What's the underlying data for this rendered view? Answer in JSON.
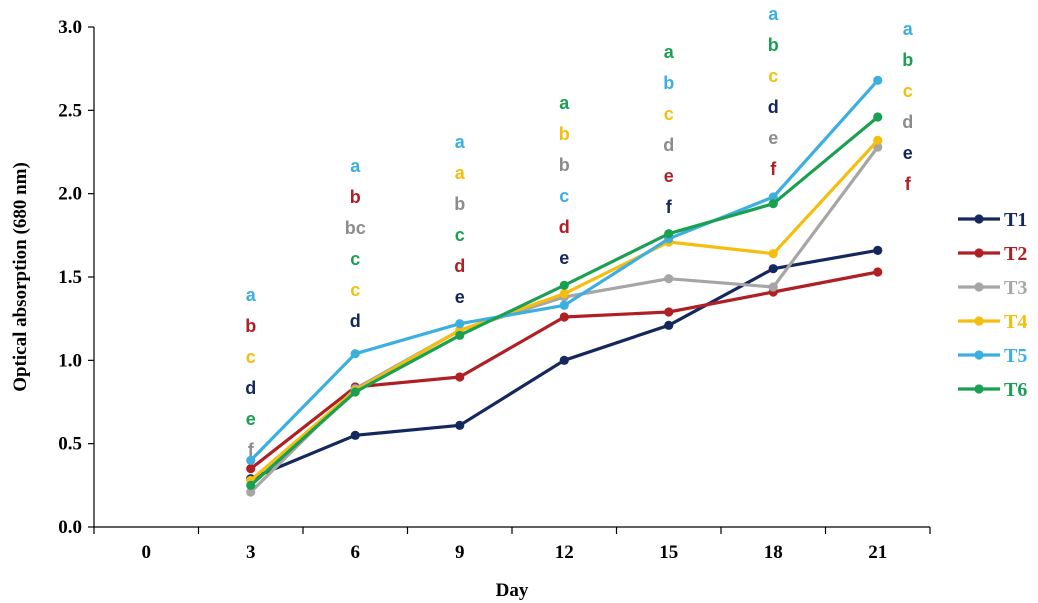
{
  "chart_data": {
    "type": "line",
    "title": "",
    "xlabel": "Day",
    "ylabel": "Optical absorption (680 nm)",
    "x_ticks": [
      0,
      3,
      6,
      9,
      12,
      15,
      18,
      21
    ],
    "x_tick_labels": [
      "0",
      "3",
      "6",
      "9",
      "12",
      "15",
      "18",
      "21"
    ],
    "y_ticks": [
      0.0,
      0.5,
      1.0,
      1.5,
      2.0,
      2.5,
      3.0
    ],
    "y_tick_labels": [
      "0.0",
      "0.5",
      "1.0",
      "1.5",
      "2.0",
      "2.5",
      "3.0"
    ],
    "xlim": [
      -1.5,
      22.5
    ],
    "ylim": [
      0,
      3.0
    ],
    "grid": false,
    "legend_position": "right",
    "x": [
      3,
      6,
      9,
      12,
      15,
      18,
      21
    ],
    "series": [
      {
        "name": "T1",
        "color": "#14285e",
        "values": [
          0.29,
          0.55,
          0.61,
          1.0,
          1.21,
          1.55,
          1.66
        ]
      },
      {
        "name": "T2",
        "color": "#b01f24",
        "values": [
          0.35,
          0.84,
          0.9,
          1.26,
          1.29,
          1.41,
          1.53
        ]
      },
      {
        "name": "T3",
        "color": "#a6a6a6",
        "values": [
          0.21,
          0.83,
          1.18,
          1.38,
          1.49,
          1.44,
          2.28
        ]
      },
      {
        "name": "T4",
        "color": "#f5bd0d",
        "values": [
          0.28,
          0.82,
          1.18,
          1.4,
          1.71,
          1.64,
          2.32
        ]
      },
      {
        "name": "T5",
        "color": "#3bb0e0",
        "values": [
          0.4,
          1.04,
          1.22,
          1.33,
          1.73,
          1.98,
          2.68
        ]
      },
      {
        "name": "T6",
        "color": "#1ba052",
        "values": [
          0.25,
          0.81,
          1.15,
          1.45,
          1.76,
          1.94,
          2.46
        ]
      }
    ],
    "annotations": [
      {
        "day": 3,
        "letters": [
          {
            "text": "a",
            "color": "#3bb0e0"
          },
          {
            "text": "b",
            "color": "#b01f24"
          },
          {
            "text": "c",
            "color": "#f5bd0d"
          },
          {
            "text": "d",
            "color": "#14285e"
          },
          {
            "text": "e",
            "color": "#1ba052"
          },
          {
            "text": "f",
            "color": "#8c8c8c"
          }
        ]
      },
      {
        "day": 6,
        "letters": [
          {
            "text": "a",
            "color": "#3bb0e0"
          },
          {
            "text": "b",
            "color": "#b01f24"
          },
          {
            "text": "bc",
            "color": "#8c8c8c"
          },
          {
            "text": "c",
            "color": "#1ba052"
          },
          {
            "text": "c",
            "color": "#f5bd0d"
          },
          {
            "text": "d",
            "color": "#14285e"
          }
        ]
      },
      {
        "day": 9,
        "letters": [
          {
            "text": "a",
            "color": "#3bb0e0"
          },
          {
            "text": "a",
            "color": "#f5bd0d"
          },
          {
            "text": "b",
            "color": "#8c8c8c"
          },
          {
            "text": "c",
            "color": "#1ba052"
          },
          {
            "text": "d",
            "color": "#b01f24"
          },
          {
            "text": "e",
            "color": "#14285e"
          }
        ]
      },
      {
        "day": 12,
        "letters": [
          {
            "text": "a",
            "color": "#1ba052"
          },
          {
            "text": "b",
            "color": "#f5bd0d"
          },
          {
            "text": "b",
            "color": "#8c8c8c"
          },
          {
            "text": "c",
            "color": "#3bb0e0"
          },
          {
            "text": "d",
            "color": "#b01f24"
          },
          {
            "text": "e",
            "color": "#14285e"
          }
        ]
      },
      {
        "day": 15,
        "letters": [
          {
            "text": "a",
            "color": "#1ba052"
          },
          {
            "text": "b",
            "color": "#3bb0e0"
          },
          {
            "text": "c",
            "color": "#f5bd0d"
          },
          {
            "text": "d",
            "color": "#8c8c8c"
          },
          {
            "text": "e",
            "color": "#b01f24"
          },
          {
            "text": "f",
            "color": "#14285e"
          }
        ]
      },
      {
        "day": 18,
        "letters": [
          {
            "text": "a",
            "color": "#3bb0e0"
          },
          {
            "text": "b",
            "color": "#1ba052"
          },
          {
            "text": "c",
            "color": "#f5bd0d"
          },
          {
            "text": "d",
            "color": "#14285e"
          },
          {
            "text": "e",
            "color": "#8c8c8c"
          },
          {
            "text": "f",
            "color": "#b01f24"
          }
        ]
      },
      {
        "day": 21,
        "letters": [
          {
            "text": "a",
            "color": "#3bb0e0"
          },
          {
            "text": "b",
            "color": "#1ba052"
          },
          {
            "text": "c",
            "color": "#f5bd0d"
          },
          {
            "text": "d",
            "color": "#8c8c8c"
          },
          {
            "text": "e",
            "color": "#14285e"
          },
          {
            "text": "f",
            "color": "#b01f24"
          }
        ]
      }
    ]
  }
}
